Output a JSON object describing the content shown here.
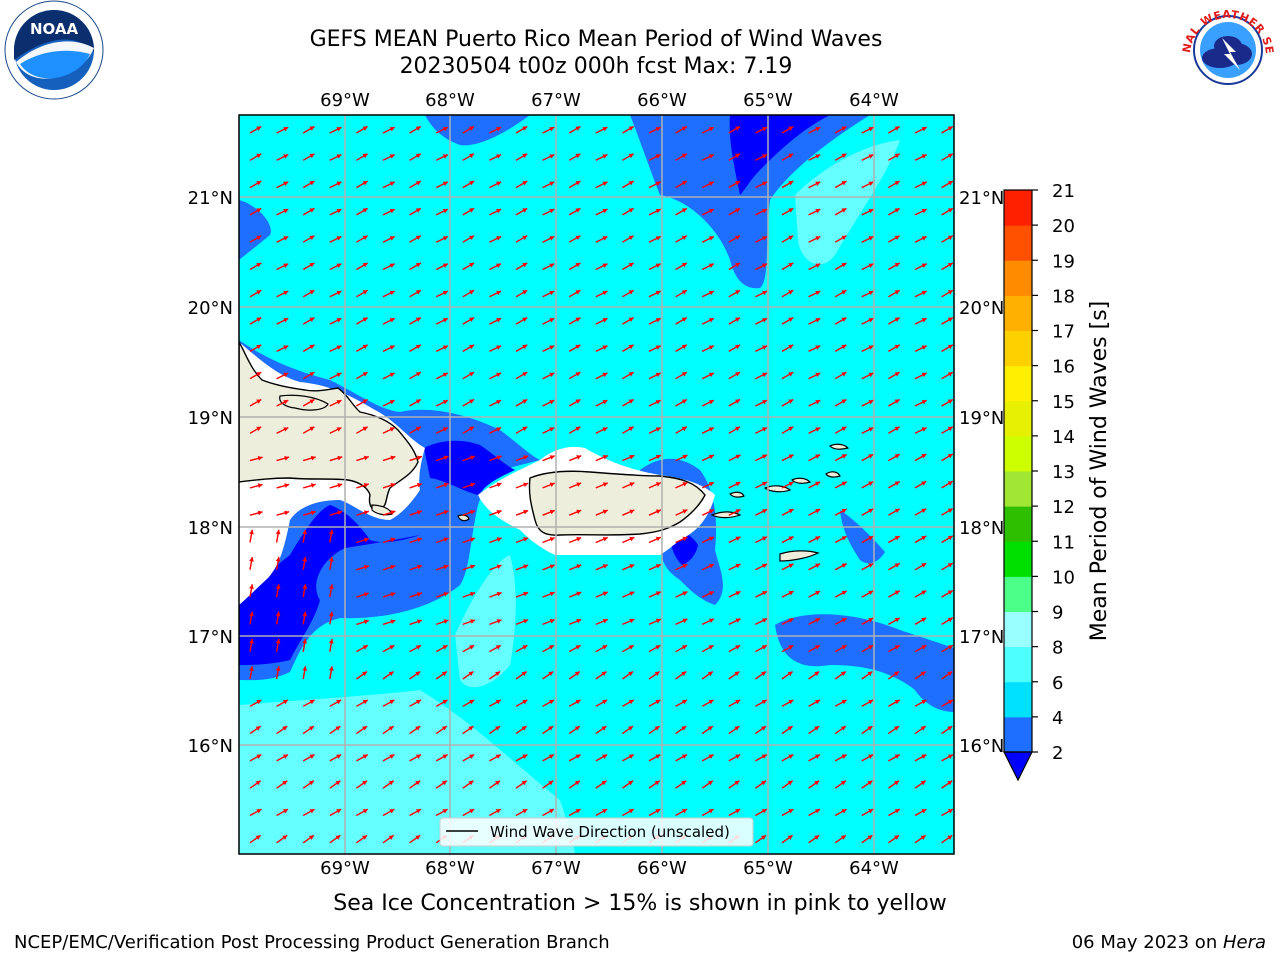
{
  "title": {
    "line1": "GEFS MEAN Puerto Rico Mean Period of Wind Waves",
    "line2": "20230504 t00z 000h fcst   Max: 7.19"
  },
  "axes": {
    "lon_ticks": [
      "69°W",
      "68°W",
      "67°W",
      "66°W",
      "65°W",
      "64°W"
    ],
    "lat_ticks": [
      "21°N",
      "20°N",
      "19°N",
      "18°N",
      "17°N",
      "16°N"
    ]
  },
  "legend": {
    "label": "Wind Wave Direction (unscaled)"
  },
  "colorbar": {
    "label": "Mean Period of Wind Waves [s]",
    "ticks": [
      "2",
      "4",
      "6",
      "8",
      "9",
      "10",
      "11",
      "12",
      "13",
      "14",
      "15",
      "16",
      "17",
      "18",
      "19",
      "20",
      "21"
    ],
    "colors": [
      "#1e6eff",
      "#00e0ff",
      "#4dffff",
      "#99ffff",
      "#4cff88",
      "#00e000",
      "#2ec000",
      "#a0e632",
      "#cdff00",
      "#e6f000",
      "#fff000",
      "#ffd000",
      "#ffb000",
      "#ff8c00",
      "#ff5000",
      "#ff2000",
      "#ff0000"
    ],
    "underflow_color": "#0000ff"
  },
  "note": "Sea Ice Concentration > 15% is shown in pink to yellow",
  "footer": {
    "left": "NCEP/EMC/Verification Post Processing Product Generation Branch",
    "right_date": "06 May 2023 on ",
    "right_host": "Hera"
  },
  "logos": {
    "noaa": "NOAA",
    "nws": "NATIONAL WEATHER SERVICE"
  },
  "colors": {
    "field_main": "#00ffff",
    "field_light": "#66ffff",
    "field_blue": "#1e6eff",
    "field_dark": "#0000ff",
    "land": "#eeeedd",
    "arrow": "#ff0000",
    "grid": "#b0b0b0"
  }
}
